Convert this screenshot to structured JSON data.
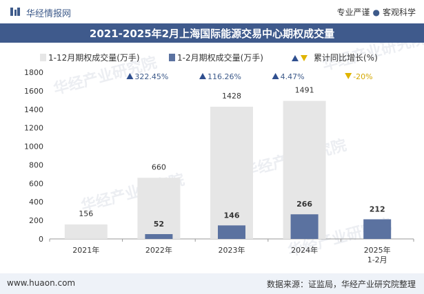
{
  "header": {
    "brand": "华经情报网",
    "slogan_left": "专业严谨",
    "slogan_sep": "●",
    "slogan_right": "客观科学"
  },
  "footer": {
    "url": "www.huaon.com",
    "source": "数据来源：证监局，华经产业研究院整理"
  },
  "watermark": "华经产业研究院",
  "colors": {
    "bar_total": "#e6e6e6",
    "bar_period": "#5b72a0",
    "growth_up": "#2f4f8f",
    "growth_down": "#e0b400",
    "growth_text_up": "#3d5a8a",
    "growth_text_down": "#d4a800",
    "title_bg": "#3f5a8c"
  },
  "chart_data": {
    "type": "bar",
    "title": "2021-2025年2月上海国际能源交易中心期权成交量",
    "categories": [
      "2021年",
      "2022年",
      "2023年",
      "2024年",
      "2025年\n1-2月"
    ],
    "series": [
      {
        "name": "1-12月期权成交量(万手)",
        "values": [
          156,
          660,
          1428,
          1491,
          null
        ]
      },
      {
        "name": "1-2月期权成交量(万手)",
        "values": [
          null,
          52,
          146,
          266,
          212
        ]
      }
    ],
    "growth": {
      "name": "累计同比增长(%)",
      "labels": [
        null,
        "322.45%",
        "116.26%",
        "4.47%",
        "-20%"
      ],
      "directions": [
        null,
        "up",
        "up",
        "up",
        "down"
      ]
    },
    "ylim": [
      0,
      1800
    ],
    "yticks": [
      0,
      200,
      400,
      600,
      800,
      1000,
      1200,
      1400,
      1600,
      1800
    ]
  }
}
